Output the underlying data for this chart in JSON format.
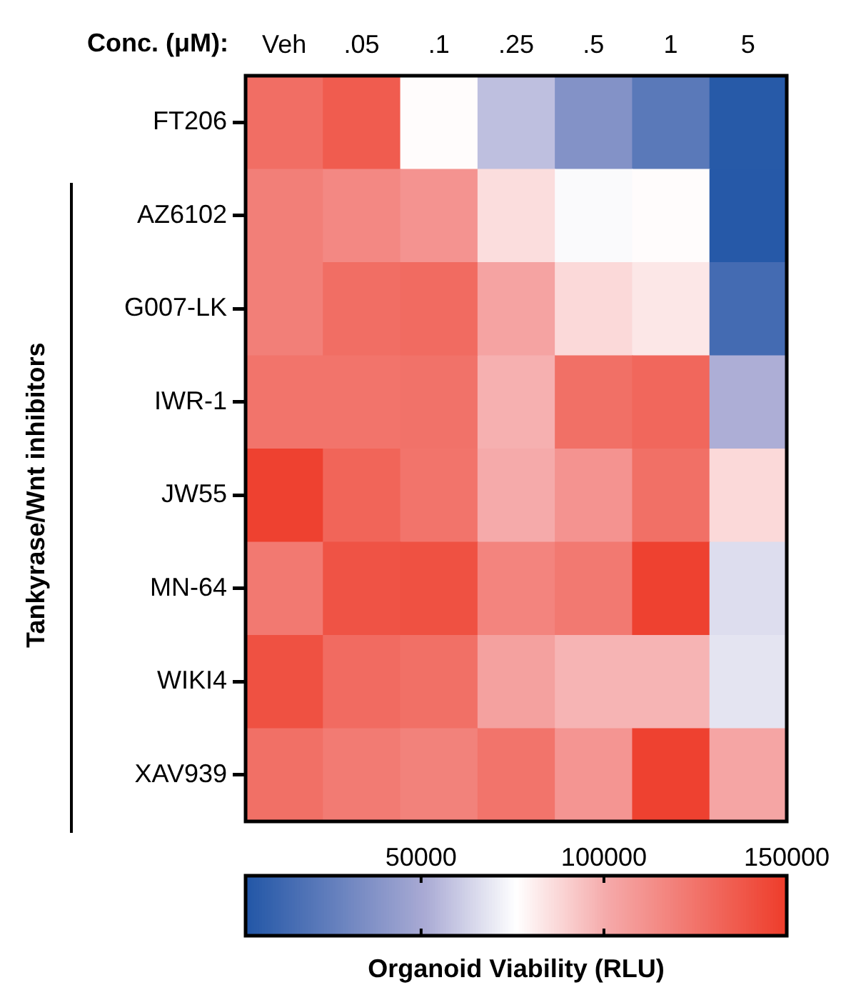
{
  "chart_data": {
    "type": "heatmap",
    "xlabel": "Conc. (μM):",
    "ylabel": "Tankyrase/Wnt inhibitors",
    "clabel": "Organoid Viability (RLU)",
    "categories": [
      "Veh",
      ".05",
      ".1",
      ".25",
      ".5",
      "1",
      "5"
    ],
    "y_categories": [
      "FT206",
      "AZ6102",
      "G007-LK",
      "IWR-1",
      "JW55",
      "MN-64",
      "WIKI4",
      "XAV939"
    ],
    "cells": [
      [
        128000,
        136000,
        77000,
        57000,
        37000,
        22000,
        3500
      ],
      [
        120000,
        116000,
        111000,
        86000,
        74500,
        77000,
        3000
      ],
      [
        120000,
        128000,
        129000,
        104000,
        87000,
        83000,
        14000
      ],
      [
        125000,
        125000,
        126000,
        99000,
        127000,
        131000,
        52000
      ],
      [
        148000,
        132000,
        125000,
        101000,
        111000,
        127000,
        87000
      ],
      [
        123000,
        140000,
        141000,
        118000,
        123000,
        148000,
        66000
      ],
      [
        141000,
        129000,
        127000,
        105000,
        98000,
        98000,
        68000
      ],
      [
        127000,
        122000,
        119000,
        125000,
        110000,
        148000,
        103000
      ]
    ],
    "clim": [
      2000,
      150000
    ],
    "cticks": [
      50000,
      100000,
      150000
    ]
  }
}
